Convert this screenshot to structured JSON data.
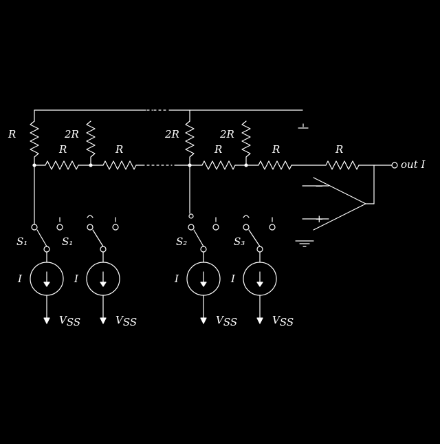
{
  "colors": {
    "background": "#000000",
    "stroke": "#ffffff"
  },
  "labels": {
    "r_rung_left": "R",
    "r_series_1": "R",
    "two_r_1": "2R",
    "r_series_2": "R",
    "two_r_mid": "2R",
    "r_series_3": "R",
    "two_r_3": "2R",
    "r_series_4": "R",
    "r_feedback": "R",
    "output": "out I",
    "switch_1": "S₁",
    "switch_2": "S₁",
    "switch_3": "S₂",
    "switch_4": "S₃",
    "current_1": "I",
    "current_2": "I",
    "current_3": "I",
    "current_4": "I",
    "vss_1": "V",
    "vss_1_sub": "SS",
    "vss_2": "V",
    "vss_2_sub": "SS",
    "vss_3": "V",
    "vss_3_sub": "SS",
    "vss_4": "V",
    "vss_4_sub": "SS",
    "opamp_minus": "−",
    "opamp_plus": "+"
  }
}
